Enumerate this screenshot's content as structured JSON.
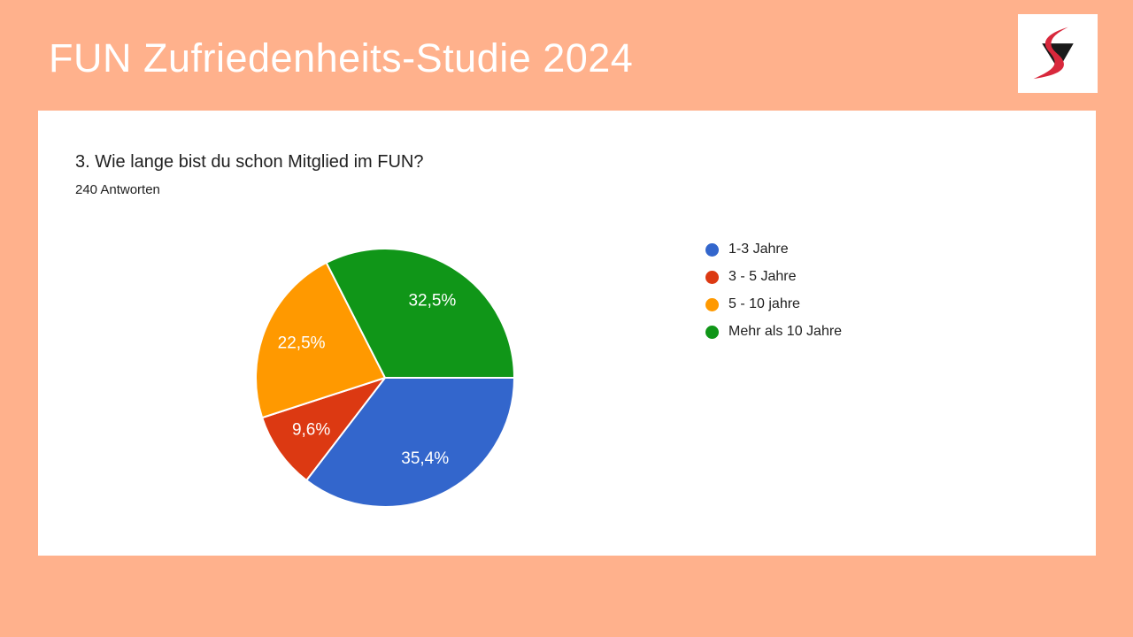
{
  "page": {
    "background_color": "#FFB18C",
    "card_color": "#FFFFFF"
  },
  "header": {
    "title": "FUN Zufriedenheits-Studie 2024",
    "title_color": "#FFFFFF",
    "logo": {
      "name": "swoosh-triangle-logo",
      "triangle_color": "#1A1A1A",
      "swoosh_color": "#D8283C",
      "background": "#FFFFFF"
    }
  },
  "card": {
    "question": "3. Wie lange bist du schon Mitglied im FUN?",
    "responses": "240 Antworten"
  },
  "chart_data": {
    "type": "pie",
    "title": "3. Wie lange bist du schon Mitglied im FUN?",
    "subtitle": "240 Antworten",
    "responses_count": 240,
    "start_angle_deg": 0,
    "direction": "clockwise",
    "legend_position": "right",
    "slice_separator_color": "#FFFFFF",
    "label_color": "#FFFFFF",
    "slices": [
      {
        "label": "1-3 Jahre",
        "value_pct": 35.4,
        "display": "35,4%",
        "color": "#3366CC"
      },
      {
        "label": "3 - 5 Jahre",
        "value_pct": 9.6,
        "display": "9,6%",
        "color": "#DC3912"
      },
      {
        "label": "5 - 10 jahre",
        "value_pct": 22.5,
        "display": "22,5%",
        "color": "#FF9900"
      },
      {
        "label": "Mehr als 10 Jahre",
        "value_pct": 32.5,
        "display": "32,5%",
        "color": "#109618"
      }
    ]
  }
}
